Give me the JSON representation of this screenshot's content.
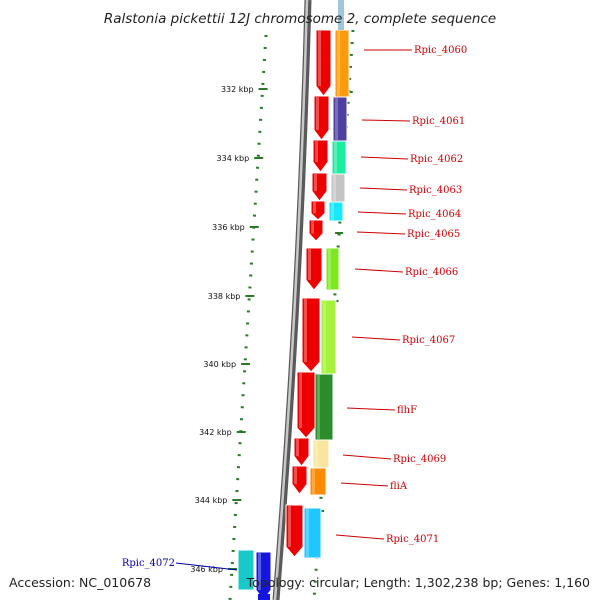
{
  "title": "Ralstonia pickettii 12J chromosome 2, complete sequence",
  "footer": {
    "accession": "Accession: NC_010678",
    "topology": "Topology: circular; Length: 1,302,238 bp; Genes: 1,160"
  },
  "colors": {
    "backbone": "#8c8c8c",
    "tick": "#2a7a2a",
    "dot": "#2a7a2a",
    "label_red": "#cc0000",
    "label_blue": "#0000aa",
    "arrow_red": "#ee0000",
    "arrow_blue": "#1515e0"
  },
  "ticks": [
    "332 kbp",
    "334 kbp",
    "336 kbp",
    "338 kbp",
    "340 kbp",
    "342 kbp",
    "344 kbp",
    "346 kbp"
  ],
  "genes": [
    {
      "name": "Rpic_4060",
      "color": "#ff9a0a",
      "label_color": "#cc0000"
    },
    {
      "name": "Rpic_4061",
      "color": "#4c3fa0",
      "label_color": "#cc0000"
    },
    {
      "name": "Rpic_4062",
      "color": "#19eea0",
      "label_color": "#cc0000"
    },
    {
      "name": "Rpic_4063",
      "color": "#c4c4c4",
      "label_color": "#cc0000"
    },
    {
      "name": "Rpic_4064",
      "color": "#18e8ff",
      "label_color": "#cc0000"
    },
    {
      "name": "Rpic_4065",
      "color": "#ff1010",
      "label_color": "#cc0000"
    },
    {
      "name": "Rpic_4066",
      "color": "#7ee81e",
      "label_color": "#cc0000"
    },
    {
      "name": "Rpic_4067",
      "color": "#a4f23c",
      "label_color": "#cc0000"
    },
    {
      "name": "flhF",
      "color": "#2a8c2a",
      "label_color": "#cc0000"
    },
    {
      "name": "Rpic_4069",
      "color": "#f8e6a0",
      "label_color": "#cc0000"
    },
    {
      "name": "fliA",
      "color": "#ff8a00",
      "label_color": "#cc0000"
    },
    {
      "name": "Rpic_4071",
      "color": "#1ec8ff",
      "label_color": "#cc0000"
    },
    {
      "name": "Rpic_4072",
      "color": "#19c8c8",
      "label_color": "#0000aa"
    }
  ]
}
